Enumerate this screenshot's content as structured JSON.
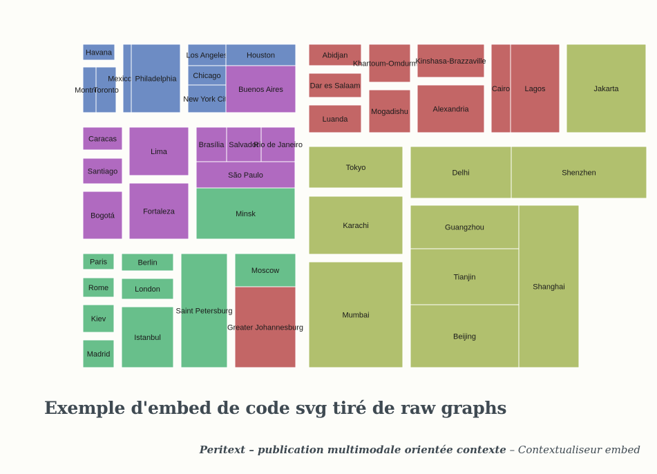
{
  "caption": "Exemple d'embed de code svg tiré de raw graphs",
  "footer": {
    "title": "Peritext – publication multimodale orientée contexte",
    "separator": "–",
    "subtitle": "Contextualiseur embed"
  },
  "colors": {
    "North America": "#6d8cc4",
    "South America": "#b06ac0",
    "Europe": "#68bf8b",
    "Africa": "#c36666",
    "Asia": "#b1c06e"
  },
  "chart_data": {
    "type": "treemap",
    "title": "",
    "cities": [
      "Havana",
      "Montreal",
      "Toronto",
      "Mexico City",
      "Philadelphia",
      "Los Angeles",
      "Houston",
      "Chicago",
      "New York City",
      "Buenos Aires",
      "Caracas",
      "Santiago",
      "Bogotá",
      "Lima",
      "Fortaleza",
      "Brasília",
      "Salvador",
      "Rio de Janeiro",
      "São Paulo",
      "Minsk",
      "Paris",
      "Rome",
      "Kiev",
      "Madrid",
      "Berlin",
      "London",
      "Istanbul",
      "Saint Petersburg",
      "Moscow",
      "Greater Johannesburg",
      "Abidjan",
      "Dar es Salaam",
      "Luanda",
      "Khartoum-Omdurman",
      "Mogadishu",
      "Kinshasa-Brazzaville",
      "Alexandria",
      "Cairo",
      "Lagos",
      "Jakarta",
      "Tokyo",
      "Karachi",
      "Mumbai",
      "Delhi",
      "Shenzhen",
      "Guangzhou",
      "Tianjin",
      "Beijing",
      "Shanghai"
    ]
  }
}
